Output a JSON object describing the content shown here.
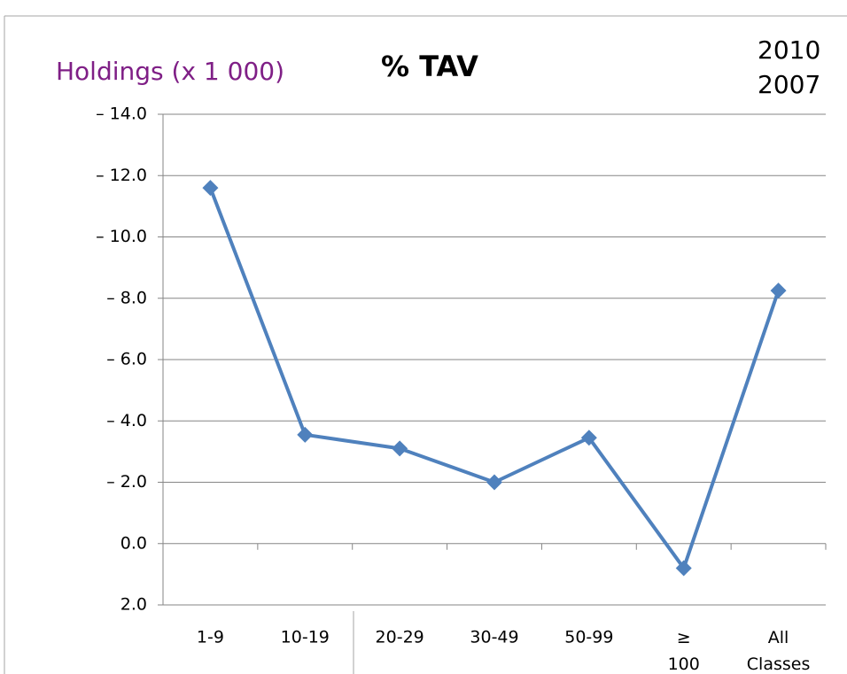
{
  "chart_data": {
    "type": "line",
    "title": "% TAV",
    "y_label": "Holdings (x 1 000)",
    "legend": [
      "2010",
      "2007"
    ],
    "categories": [
      "1-9",
      "10-19",
      "20-29",
      "30-49",
      "50-99",
      "≥ 100",
      "All Classes"
    ],
    "values": [
      -11.6,
      -3.55,
      -3.1,
      -2.0,
      -3.45,
      0.8,
      -8.25
    ],
    "color": "#4f81bd",
    "ylim": [
      2,
      -14
    ],
    "yticks": [
      {
        "value": -14,
        "label": "– 14.0"
      },
      {
        "value": -12,
        "label": "– 12.0"
      },
      {
        "value": -10,
        "label": "– 10.0"
      },
      {
        "value": -8,
        "label": "– 8.0"
      },
      {
        "value": -6,
        "label": "– 6.0"
      },
      {
        "value": -4,
        "label": "– 4.0"
      },
      {
        "value": -2,
        "label": "– 2.0"
      },
      {
        "value": 0,
        "label": "0.0"
      },
      {
        "value": 2,
        "label": "2.0"
      }
    ],
    "grid": true
  }
}
